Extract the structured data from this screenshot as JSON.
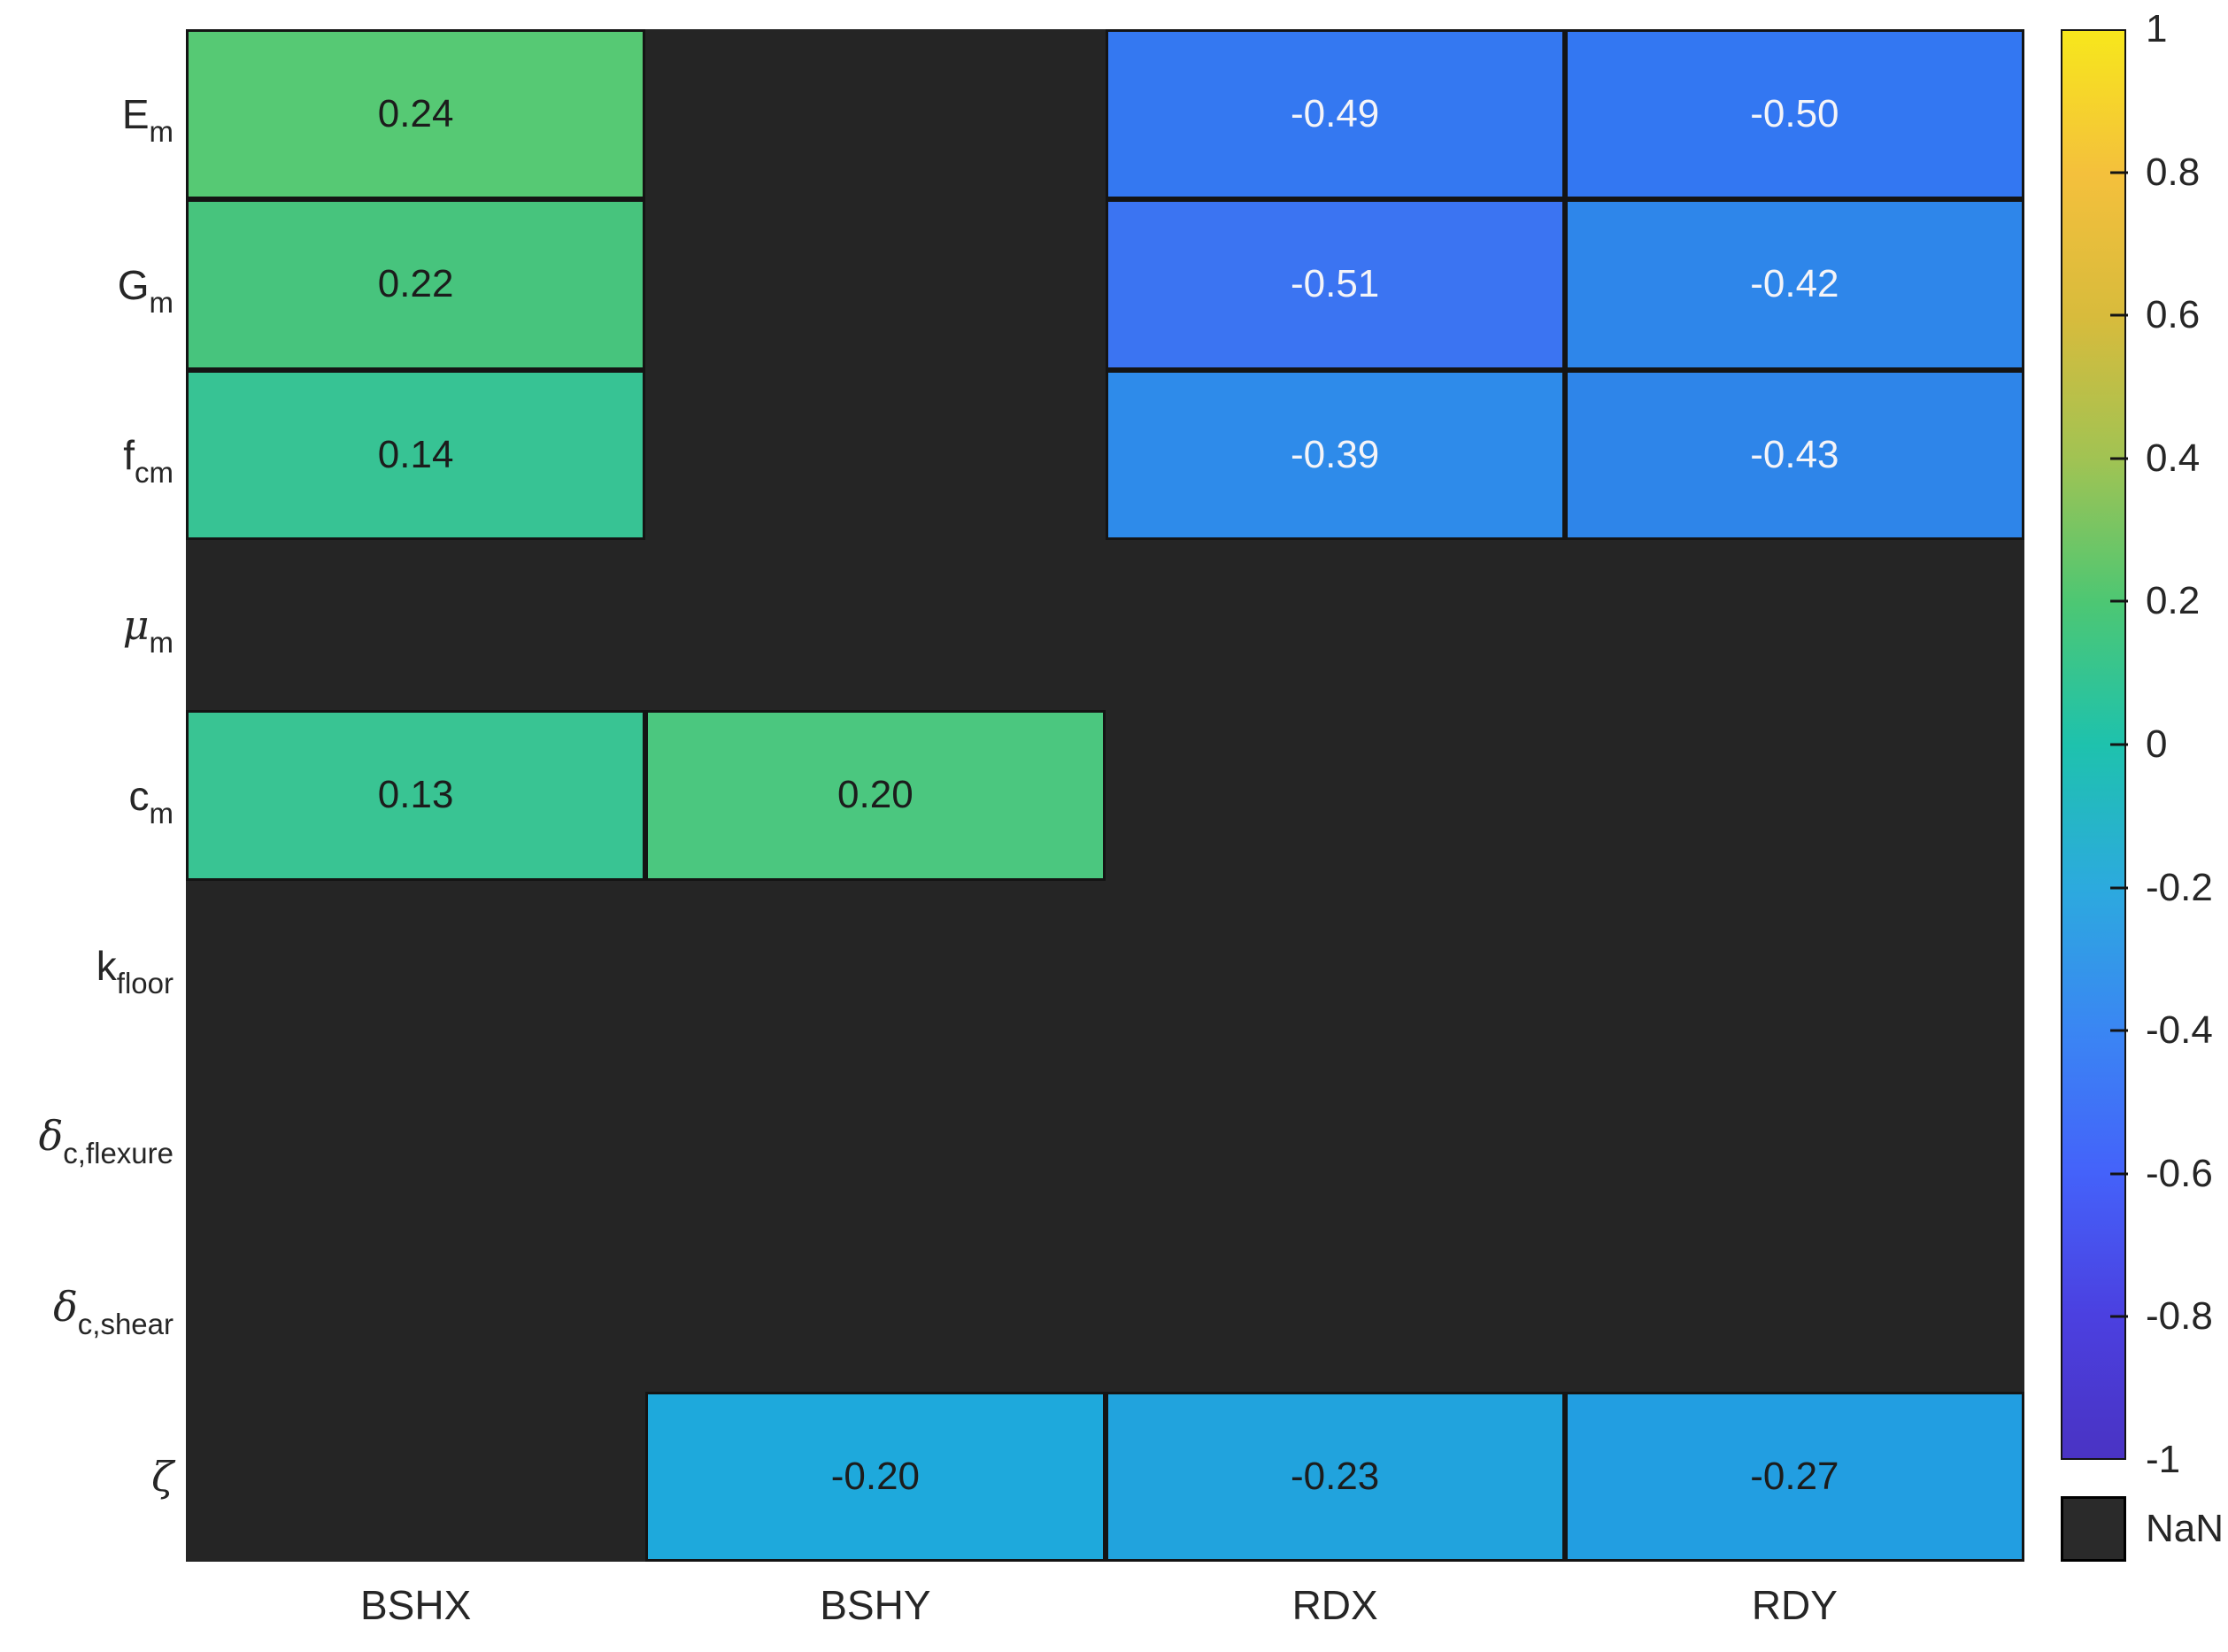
{
  "heatmap": {
    "columns": [
      "BSHX",
      "BSHY",
      "RDX",
      "RDY"
    ],
    "rows": [
      {
        "base": "E",
        "sub": "m",
        "greek": false
      },
      {
        "base": "G",
        "sub": "m",
        "greek": false
      },
      {
        "base": "f",
        "sub": "cm",
        "greek": false
      },
      {
        "base": "μ",
        "sub": "m",
        "greek": true
      },
      {
        "base": "c",
        "sub": "m",
        "greek": false
      },
      {
        "base": "k",
        "sub": "floor",
        "greek": false
      },
      {
        "base": "δ",
        "sub": "c,flexure",
        "greek": true
      },
      {
        "base": "δ",
        "sub": "c,shear",
        "greek": true
      },
      {
        "base": "ζ",
        "sub": "",
        "greek": true
      }
    ],
    "nan_color": "#252525",
    "grid_color": "#141414",
    "cells": [
      [
        {
          "text": "0.24",
          "bg": "#56c974",
          "fg": "#1c1c1c"
        },
        null,
        {
          "text": "-0.49",
          "bg": "#3478f1",
          "fg": "#f4f4f8"
        },
        {
          "text": "-0.50",
          "bg": "#3377f2",
          "fg": "#f4f4f8"
        }
      ],
      [
        {
          "text": "0.22",
          "bg": "#47c47d",
          "fg": "#1c1c1c"
        },
        null,
        {
          "text": "-0.51",
          "bg": "#3b74f2",
          "fg": "#f4f4f8"
        },
        {
          "text": "-0.42",
          "bg": "#2e86ea",
          "fg": "#f4f4f8"
        }
      ],
      [
        {
          "text": "0.14",
          "bg": "#37c394",
          "fg": "#1c1c1c"
        },
        null,
        {
          "text": "-0.39",
          "bg": "#2e8bea",
          "fg": "#f4f4f8"
        },
        {
          "text": "-0.43",
          "bg": "#2e85e9",
          "fg": "#f4f4f8"
        }
      ],
      [
        null,
        null,
        null,
        null
      ],
      [
        {
          "text": "0.13",
          "bg": "#39c493",
          "fg": "#1c1c1c"
        },
        {
          "text": "0.20",
          "bg": "#4bc77f",
          "fg": "#1c1c1c"
        },
        null,
        null
      ],
      [
        null,
        null,
        null,
        null
      ],
      [
        null,
        null,
        null,
        null
      ],
      [
        null,
        null,
        null,
        null
      ],
      [
        null,
        {
          "text": "-0.20",
          "bg": "#1ea9dc",
          "fg": "#1c1c1c"
        },
        {
          "text": "-0.23",
          "bg": "#21a3dd",
          "fg": "#1c1c1c"
        },
        {
          "text": "-0.27",
          "bg": "#229ee1",
          "fg": "#1c1c1c"
        }
      ]
    ]
  },
  "colorbar": {
    "tick_labels": [
      "1",
      "0.8",
      "0.6",
      "0.4",
      "0.2",
      "0",
      "-0.2",
      "-0.4",
      "-0.6",
      "-0.8",
      "-1"
    ],
    "gradient_top_to_bottom": [
      "#f7e71c",
      "#f4c03c",
      "#d8bb3c",
      "#a1c353",
      "#4dc773",
      "#1ec2ad",
      "#2caade",
      "#3a86f3",
      "#4462fa",
      "#4b40e0",
      "#4a33c3"
    ],
    "nan_label": "NaN",
    "nan_swatch_color": "#2a2a2a"
  },
  "chart_data": {
    "type": "heatmap",
    "x_categories": [
      "BSHX",
      "BSHY",
      "RDX",
      "RDY"
    ],
    "y_categories": [
      "E_m",
      "G_m",
      "f_cm",
      "mu_m",
      "c_m",
      "k_floor",
      "delta_c,flexure",
      "delta_c,shear",
      "zeta"
    ],
    "values": [
      [
        0.24,
        null,
        -0.49,
        -0.5
      ],
      [
        0.22,
        null,
        -0.51,
        -0.42
      ],
      [
        0.14,
        null,
        -0.39,
        -0.43
      ],
      [
        null,
        null,
        null,
        null
      ],
      [
        0.13,
        0.2,
        null,
        null
      ],
      [
        null,
        null,
        null,
        null
      ],
      [
        null,
        null,
        null,
        null
      ],
      [
        null,
        null,
        null,
        null
      ],
      [
        null,
        -0.2,
        -0.23,
        -0.27
      ]
    ],
    "colormap": "parula",
    "colorbar_range": [
      -1,
      1
    ],
    "colorbar_ticks": [
      1,
      0.8,
      0.6,
      0.4,
      0.2,
      0,
      -0.2,
      -0.4,
      -0.6,
      -0.8,
      -1
    ],
    "missing_value_label": "NaN",
    "grid": true,
    "legend_position": "right"
  }
}
